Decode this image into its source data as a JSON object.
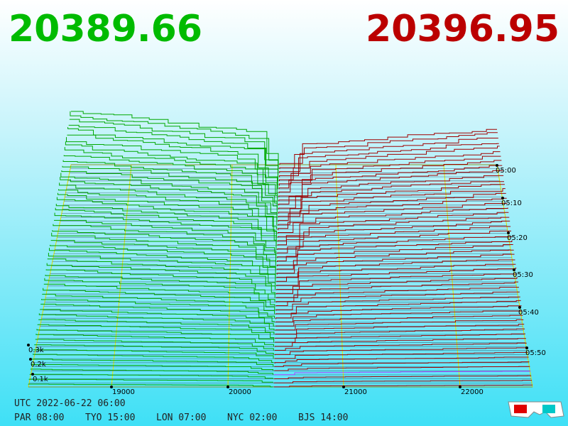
{
  "header": {
    "bid": "20389.66",
    "ask": "20396.95"
  },
  "price_axis": {
    "ticks": [
      "19000",
      "20000",
      "21000",
      "22000"
    ]
  },
  "time_axis": {
    "ticks": [
      "05:00",
      "05:10",
      "05:20",
      "05:30",
      "05:40",
      "05:50"
    ]
  },
  "depth_axis": {
    "ticks": [
      "0.3k",
      "0.2k",
      "0.1k"
    ]
  },
  "footer": {
    "utc": "UTC 2022-06-22 06:00",
    "clocks": [
      "PAR 08:00",
      "TYO 15:00",
      "LON 07:00",
      "NYC 02:00",
      "BJS 14:00"
    ]
  }
}
